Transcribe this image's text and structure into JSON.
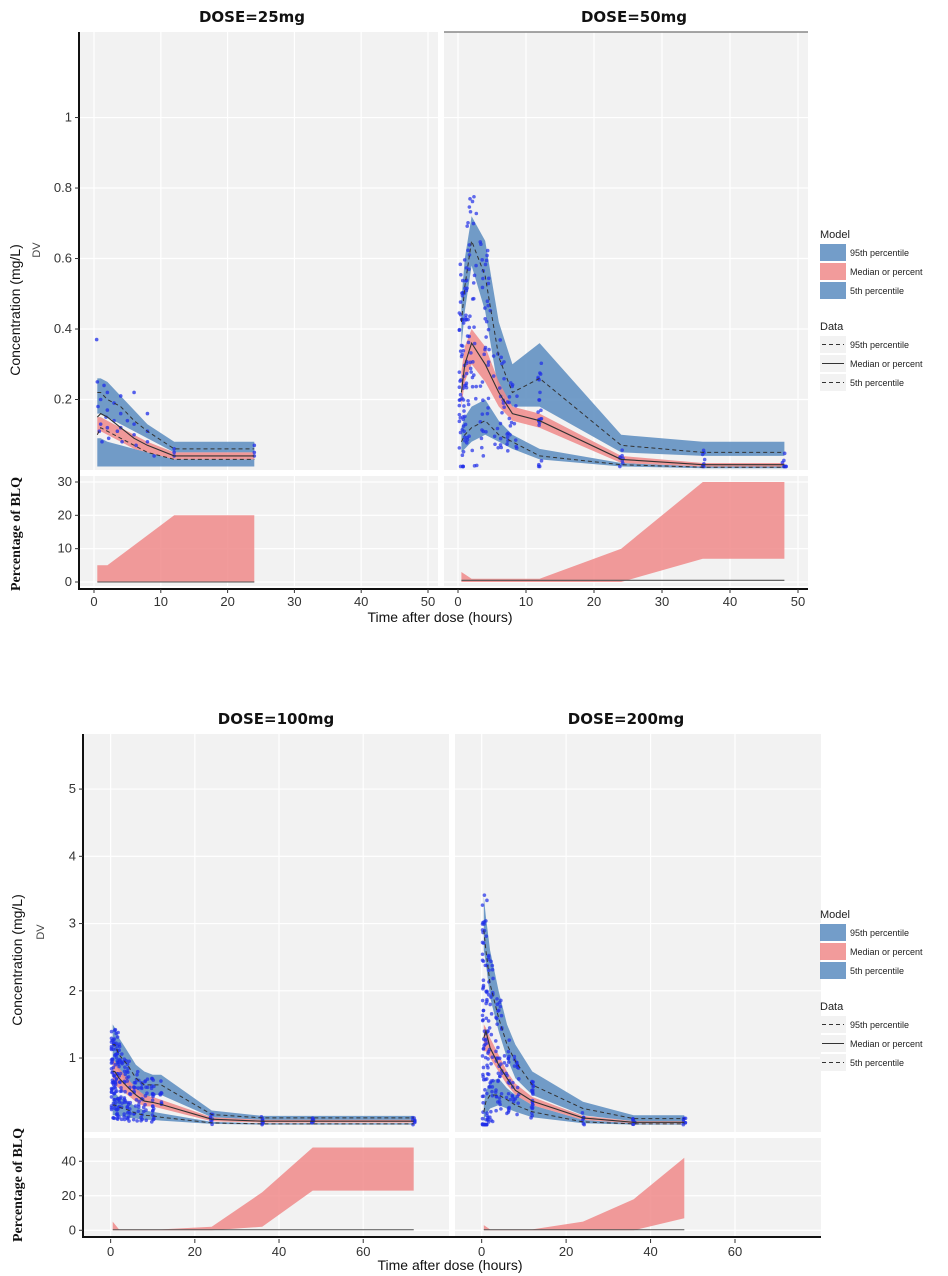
{
  "colors": {
    "panel_bg": "#f2f2f2",
    "blue_band": "#5b8cbf",
    "red_band": "#f08a8a",
    "points": "#1f2ee8",
    "line": "#333333"
  },
  "legend": {
    "model_title": "Model",
    "model_items": [
      "95th percentile",
      "Median or percent",
      "5th percentile"
    ],
    "data_title": "Data",
    "data_items": [
      "95th percentile",
      "Median or percent",
      "5th percentile"
    ]
  },
  "chart_data": [
    {
      "type": "line",
      "figure": "top",
      "y_label": "Concentration (mg/L)",
      "y_sublabel": "DV",
      "blq_label": "Percentage of BLQ",
      "x_label": "Time after dose (hours)",
      "xlim": [
        0,
        50
      ],
      "x_ticks": [
        0,
        10,
        20,
        30,
        40,
        50
      ],
      "ylim": [
        0,
        1.22
      ],
      "y_ticks": [
        0.2,
        0.4,
        0.6,
        0.8,
        1
      ],
      "blq_ylim": [
        0,
        30
      ],
      "blq_ticks": [
        0,
        10,
        20,
        30
      ],
      "panels": [
        {
          "title": "DOSE=25mg",
          "x": [
            0.5,
            1,
            2,
            4,
            6,
            8,
            12,
            24
          ],
          "p95_band": [
            [
              0.16,
              0.26
            ],
            [
              0.16,
              0.26
            ],
            [
              0.15,
              0.25
            ],
            [
              0.13,
              0.21
            ],
            [
              0.11,
              0.17
            ],
            [
              0.09,
              0.13
            ],
            [
              0.05,
              0.08
            ],
            [
              0.05,
              0.08
            ]
          ],
          "median_band": [
            [
              0.1,
              0.15
            ],
            [
              0.11,
              0.15
            ],
            [
              0.1,
              0.14
            ],
            [
              0.08,
              0.12
            ],
            [
              0.06,
              0.1
            ],
            [
              0.05,
              0.08
            ],
            [
              0.03,
              0.05
            ],
            [
              0.03,
              0.05
            ]
          ],
          "p5_band": [
            [
              0.01,
              0.09
            ],
            [
              0.01,
              0.09
            ],
            [
              0.01,
              0.08
            ],
            [
              0.01,
              0.07
            ],
            [
              0.01,
              0.06
            ],
            [
              0.01,
              0.05
            ],
            [
              0.01,
              0.03
            ],
            [
              0.01,
              0.03
            ]
          ],
          "obs_p95": [
            0.22,
            0.22,
            0.2,
            0.18,
            0.14,
            0.11,
            0.06,
            0.06
          ],
          "obs_median": [
            0.15,
            0.16,
            0.15,
            0.12,
            0.09,
            0.07,
            0.04,
            0.04
          ],
          "obs_p5": [
            0.1,
            0.12,
            0.11,
            0.09,
            0.07,
            0.05,
            0.03,
            0.03
          ],
          "points": [
            [
              0.4,
              0.37
            ],
            [
              0.5,
              0.25
            ],
            [
              0.6,
              0.18
            ],
            [
              0.8,
              0.11
            ],
            [
              1,
              0.2
            ],
            [
              1,
              0.13
            ],
            [
              1.2,
              0.08
            ],
            [
              1.5,
              0.24
            ],
            [
              1.8,
              0.15
            ],
            [
              2,
              0.22
            ],
            [
              2,
              0.17
            ],
            [
              2,
              0.12
            ],
            [
              2.2,
              0.09
            ],
            [
              3,
              0.19
            ],
            [
              3,
              0.14
            ],
            [
              3.5,
              0.11
            ],
            [
              4,
              0.21
            ],
            [
              4,
              0.16
            ],
            [
              4,
              0.12
            ],
            [
              4.2,
              0.08
            ],
            [
              5,
              0.14
            ],
            [
              6,
              0.22
            ],
            [
              6,
              0.13
            ],
            [
              6,
              0.1
            ],
            [
              6.3,
              0.07
            ],
            [
              8,
              0.16
            ],
            [
              8,
              0.11
            ],
            [
              8,
              0.08
            ],
            [
              9,
              0.04
            ],
            [
              12,
              0.05
            ],
            [
              12,
              0.04
            ],
            [
              12,
              0.06
            ],
            [
              24,
              0.07
            ],
            [
              24,
              0.05
            ],
            [
              24,
              0.04
            ]
          ],
          "blq_band": [
            [
              0.5,
              0,
              5
            ],
            [
              2,
              0,
              5
            ],
            [
              12,
              0,
              20
            ],
            [
              24,
              0,
              20
            ]
          ],
          "blq_obs": [
            [
              0.5,
              0
            ],
            [
              24,
              0
            ]
          ]
        },
        {
          "title": "DOSE=50mg",
          "x": [
            0.5,
            1,
            2,
            4,
            6,
            8,
            12,
            24,
            36,
            48
          ],
          "p95_band": [
            [
              0.35,
              0.48
            ],
            [
              0.45,
              0.6
            ],
            [
              0.58,
              0.72
            ],
            [
              0.45,
              0.65
            ],
            [
              0.22,
              0.42
            ],
            [
              0.18,
              0.3
            ],
            [
              0.18,
              0.36
            ],
            [
              0.05,
              0.1
            ],
            [
              0.04,
              0.08
            ],
            [
              0.04,
              0.08
            ]
          ],
          "median_band": [
            [
              0.18,
              0.28
            ],
            [
              0.25,
              0.35
            ],
            [
              0.3,
              0.4
            ],
            [
              0.25,
              0.35
            ],
            [
              0.18,
              0.25
            ],
            [
              0.14,
              0.18
            ],
            [
              0.12,
              0.16
            ],
            [
              0.02,
              0.04
            ],
            [
              0.01,
              0.02
            ],
            [
              0.01,
              0.02
            ]
          ],
          "p5_band": [
            [
              0.05,
              0.12
            ],
            [
              0.06,
              0.15
            ],
            [
              0.08,
              0.18
            ],
            [
              0.1,
              0.2
            ],
            [
              0.08,
              0.14
            ],
            [
              0.06,
              0.1
            ],
            [
              0.03,
              0.06
            ],
            [
              0.01,
              0.02
            ],
            [
              0.005,
              0.01
            ],
            [
              0.005,
              0.01
            ]
          ],
          "obs_p95": [
            0.42,
            0.52,
            0.65,
            0.55,
            0.32,
            0.22,
            0.26,
            0.07,
            0.05,
            0.05
          ],
          "obs_median": [
            0.22,
            0.3,
            0.36,
            0.3,
            0.22,
            0.16,
            0.14,
            0.03,
            0.015,
            0.015
          ],
          "obs_p5": [
            0.08,
            0.1,
            0.12,
            0.14,
            0.1,
            0.08,
            0.04,
            0.015,
            0.008,
            0.008
          ]
        }
      ],
      "blq": [
        null,
        {
          "blq_band": [
            [
              0.5,
              0,
              3
            ],
            [
              2,
              0,
              1
            ],
            [
              12,
              0,
              1
            ],
            [
              24,
              0,
              10
            ],
            [
              36,
              7,
              30
            ],
            [
              48,
              7,
              30
            ]
          ],
          "blq_obs": [
            [
              0.5,
              0.5
            ],
            [
              48,
              0.5
            ]
          ]
        }
      ]
    },
    {
      "type": "line",
      "figure": "bottom",
      "y_label": "Concentration (mg/L)",
      "y_sublabel": "DV",
      "blq_label": "Percentage of BLQ",
      "x_label": "Time after dose (hours)",
      "xlim": [
        -3,
        78
      ],
      "x_ticks": [
        0,
        20,
        40,
        60
      ],
      "ylim": [
        -0.1,
        5.7
      ],
      "y_ticks": [
        1,
        2,
        3,
        4,
        5
      ],
      "blq_ylim": [
        -1,
        50
      ],
      "blq_ticks": [
        0,
        20,
        40
      ],
      "panels": [
        {
          "title": "DOSE=100mg",
          "x": [
            0.5,
            1,
            2,
            4,
            6,
            8,
            10,
            12,
            24,
            36,
            48,
            72
          ],
          "p95_band": [
            [
              0.9,
              1.5
            ],
            [
              0.9,
              1.45
            ],
            [
              0.8,
              1.3
            ],
            [
              0.6,
              1.1
            ],
            [
              0.5,
              0.9
            ],
            [
              0.4,
              0.8
            ],
            [
              0.45,
              0.75
            ],
            [
              0.45,
              0.75
            ],
            [
              0.12,
              0.22
            ],
            [
              0.08,
              0.14
            ],
            [
              0.08,
              0.14
            ],
            [
              0.08,
              0.14
            ]
          ],
          "median_band": [
            [
              0.6,
              1.0
            ],
            [
              0.6,
              0.95
            ],
            [
              0.55,
              0.85
            ],
            [
              0.45,
              0.7
            ],
            [
              0.35,
              0.55
            ],
            [
              0.28,
              0.45
            ],
            [
              0.28,
              0.42
            ],
            [
              0.25,
              0.38
            ],
            [
              0.06,
              0.12
            ],
            [
              0.04,
              0.08
            ],
            [
              0.04,
              0.08
            ],
            [
              0.04,
              0.08
            ]
          ],
          "p5_band": [
            [
              0.15,
              0.5
            ],
            [
              0.15,
              0.48
            ],
            [
              0.14,
              0.42
            ],
            [
              0.12,
              0.35
            ],
            [
              0.1,
              0.28
            ],
            [
              0.08,
              0.22
            ],
            [
              0.08,
              0.2
            ],
            [
              0.07,
              0.18
            ],
            [
              0.02,
              0.05
            ],
            [
              0.01,
              0.03
            ],
            [
              0.01,
              0.03
            ],
            [
              0.01,
              0.03
            ]
          ],
          "obs_p95": [
            1.2,
            1.2,
            1.05,
            0.9,
            0.7,
            0.6,
            0.6,
            0.6,
            0.16,
            0.11,
            0.11,
            0.11
          ],
          "obs_median": [
            0.8,
            0.8,
            0.7,
            0.57,
            0.45,
            0.36,
            0.34,
            0.31,
            0.09,
            0.06,
            0.06,
            0.06
          ],
          "obs_p5": [
            0.3,
            0.3,
            0.27,
            0.23,
            0.18,
            0.15,
            0.14,
            0.12,
            0.035,
            0.02,
            0.02,
            0.02
          ]
        },
        {
          "title": "DOSE=200mg",
          "x": [
            0.5,
            1,
            2,
            4,
            6,
            8,
            12,
            24,
            36,
            48
          ],
          "p95_band": [
            [
              2.6,
              3.4
            ],
            [
              2.4,
              3.1
            ],
            [
              1.9,
              2.6
            ],
            [
              1.4,
              2.0
            ],
            [
              1.0,
              1.5
            ],
            [
              0.7,
              1.2
            ],
            [
              0.45,
              0.8
            ],
            [
              0.15,
              0.35
            ],
            [
              0.06,
              0.15
            ],
            [
              0.06,
              0.15
            ]
          ],
          "median_band": [
            [
              1.1,
              1.5
            ],
            [
              1.1,
              1.45
            ],
            [
              1.0,
              1.3
            ],
            [
              0.8,
              1.05
            ],
            [
              0.6,
              0.8
            ],
            [
              0.45,
              0.62
            ],
            [
              0.3,
              0.42
            ],
            [
              0.08,
              0.14
            ],
            [
              0.03,
              0.06
            ],
            [
              0.03,
              0.06
            ]
          ],
          "p5_band": [
            [
              0.05,
              0.3
            ],
            [
              0.15,
              0.5
            ],
            [
              0.25,
              0.65
            ],
            [
              0.3,
              0.7
            ],
            [
              0.25,
              0.55
            ],
            [
              0.2,
              0.45
            ],
            [
              0.12,
              0.3
            ],
            [
              0.03,
              0.08
            ],
            [
              0.01,
              0.03
            ],
            [
              0.01,
              0.03
            ]
          ],
          "obs_p95": [
            2.9,
            2.6,
            2.1,
            1.6,
            1.2,
            0.95,
            0.6,
            0.25,
            0.1,
            0.1
          ],
          "obs_median": [
            1.3,
            1.4,
            1.15,
            0.9,
            0.7,
            0.52,
            0.36,
            0.11,
            0.045,
            0.045
          ],
          "obs_p5": [
            0.2,
            0.35,
            0.45,
            0.45,
            0.38,
            0.3,
            0.2,
            0.05,
            0.02,
            0.02
          ]
        }
      ],
      "blq": [
        {
          "blq_band": [
            [
              0.5,
              0,
              5
            ],
            [
              2,
              0,
              0.5
            ],
            [
              12,
              0,
              0.5
            ],
            [
              24,
              0,
              2
            ],
            [
              36,
              2,
              22
            ],
            [
              48,
              23,
              48
            ],
            [
              72,
              23,
              48
            ]
          ],
          "blq_obs": [
            [
              0.5,
              0.3
            ],
            [
              72,
              0.3
            ]
          ]
        },
        {
          "blq_band": [
            [
              0.5,
              0,
              3
            ],
            [
              2,
              0,
              0.5
            ],
            [
              12,
              0,
              0.5
            ],
            [
              24,
              0,
              5
            ],
            [
              36,
              0,
              18
            ],
            [
              48,
              7,
              42
            ]
          ],
          "blq_obs": [
            [
              0.5,
              0.3
            ],
            [
              48,
              0.3
            ]
          ]
        }
      ]
    }
  ]
}
